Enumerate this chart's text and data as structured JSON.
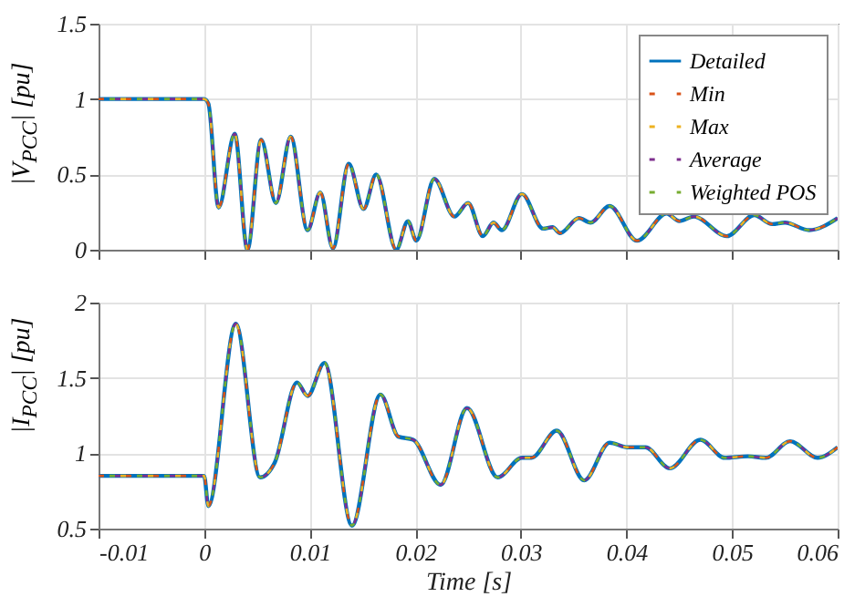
{
  "chart_data": [
    {
      "type": "line",
      "ylabel": "|V$_{PCC}$| [pu]",
      "xlim": [
        -0.01,
        0.06
      ],
      "xticks": [
        -0.01,
        0,
        0.01,
        0.02,
        0.03,
        0.04,
        0.05,
        0.06
      ],
      "ylim": [
        0,
        1.5
      ],
      "yticks": [
        0,
        0.5,
        1,
        1.5
      ],
      "grid": true,
      "legend": "top right",
      "tick_labels": "y",
      "x": [
        -0.01,
        0,
        0.0004,
        0.00137,
        0.0029,
        0.0041,
        0.0054,
        0.0068,
        0.0082,
        0.0098,
        0.011,
        0.0122,
        0.0137,
        0.0151,
        0.0163,
        0.0182,
        0.0193,
        0.0201,
        0.0218,
        0.0237,
        0.025,
        0.0264,
        0.0274,
        0.0282,
        0.0301,
        0.0321,
        0.033,
        0.0337,
        0.0355,
        0.0366,
        0.0384,
        0.041,
        0.0438,
        0.045,
        0.0464,
        0.0495,
        0.0521,
        0.0538,
        0.055,
        0.0573,
        0.06
      ],
      "series": [
        {
          "name": "Detailed",
          "color": "#0072bd",
          "line_style": "solid",
          "values": [
            1,
            1,
            0.97,
            0.28,
            0.77,
            0,
            0.73,
            0.31,
            0.75,
            0.13,
            0.38,
            0.01,
            0.57,
            0.27,
            0.5,
            0,
            0.19,
            0.06,
            0.47,
            0.22,
            0.31,
            0.09,
            0.18,
            0.13,
            0.37,
            0.14,
            0.15,
            0.11,
            0.21,
            0.18,
            0.29,
            0.06,
            0.24,
            0.19,
            0.22,
            0.09,
            0.23,
            0.17,
            0.18,
            0.13,
            0.21
          ]
        },
        {
          "name": "Min",
          "color": "#d95319",
          "line_style": "dashed",
          "values": [
            1,
            1,
            0.97,
            0.28,
            0.77,
            0,
            0.73,
            0.31,
            0.75,
            0.13,
            0.38,
            0.01,
            0.57,
            0.27,
            0.5,
            0,
            0.19,
            0.06,
            0.47,
            0.22,
            0.31,
            0.09,
            0.18,
            0.13,
            0.37,
            0.14,
            0.15,
            0.11,
            0.21,
            0.18,
            0.29,
            0.06,
            0.24,
            0.19,
            0.22,
            0.09,
            0.23,
            0.17,
            0.18,
            0.13,
            0.21
          ]
        },
        {
          "name": "Max",
          "color": "#edb120",
          "line_style": "dashed",
          "values": [
            1,
            1,
            0.97,
            0.28,
            0.77,
            0,
            0.73,
            0.31,
            0.75,
            0.13,
            0.38,
            0.01,
            0.57,
            0.27,
            0.5,
            0,
            0.19,
            0.06,
            0.47,
            0.22,
            0.31,
            0.09,
            0.18,
            0.13,
            0.37,
            0.14,
            0.15,
            0.11,
            0.21,
            0.18,
            0.29,
            0.06,
            0.24,
            0.19,
            0.22,
            0.09,
            0.23,
            0.17,
            0.18,
            0.13,
            0.21
          ]
        },
        {
          "name": "Average",
          "color": "#7e2f8e",
          "line_style": "dashed",
          "values": [
            1,
            1,
            0.97,
            0.28,
            0.77,
            0,
            0.73,
            0.31,
            0.75,
            0.13,
            0.38,
            0.01,
            0.57,
            0.27,
            0.5,
            0,
            0.19,
            0.06,
            0.47,
            0.22,
            0.31,
            0.09,
            0.18,
            0.13,
            0.37,
            0.14,
            0.15,
            0.11,
            0.21,
            0.18,
            0.29,
            0.06,
            0.24,
            0.19,
            0.22,
            0.09,
            0.23,
            0.17,
            0.18,
            0.13,
            0.21
          ]
        },
        {
          "name": "Weighted POS",
          "color": "#77ac30",
          "line_style": "dashed",
          "values": [
            1,
            1,
            0.97,
            0.28,
            0.77,
            0,
            0.73,
            0.31,
            0.75,
            0.13,
            0.38,
            0.01,
            0.57,
            0.27,
            0.5,
            0,
            0.19,
            0.06,
            0.47,
            0.22,
            0.31,
            0.09,
            0.18,
            0.13,
            0.37,
            0.14,
            0.15,
            0.11,
            0.21,
            0.18,
            0.29,
            0.06,
            0.24,
            0.19,
            0.22,
            0.09,
            0.23,
            0.17,
            0.18,
            0.13,
            0.21
          ]
        }
      ]
    },
    {
      "type": "line",
      "xlabel": "Time [s]",
      "ylabel": "|I$_{PCC}$| [pu]",
      "xlim": [
        -0.01,
        0.06
      ],
      "xticks": [
        -0.01,
        0,
        0.01,
        0.02,
        0.03,
        0.04,
        0.05,
        0.06
      ],
      "ylim": [
        0.5,
        2
      ],
      "yticks": [
        0.5,
        1,
        1.5,
        2
      ],
      "grid": true,
      "x": [
        -0.01,
        0,
        0.0004,
        0.003,
        0.0053,
        0.0067,
        0.0088,
        0.0098,
        0.0114,
        0.014,
        0.0167,
        0.0184,
        0.0198,
        0.0224,
        0.0249,
        0.0278,
        0.0301,
        0.031,
        0.0334,
        0.036,
        0.0384,
        0.0401,
        0.0418,
        0.0441,
        0.047,
        0.0493,
        0.0515,
        0.0532,
        0.0555,
        0.0581,
        0.06
      ],
      "series": [
        {
          "color": "#0072bd",
          "line_style": "solid",
          "values": [
            0.85,
            0.85,
            0.65,
            1.86,
            0.84,
            0.94,
            1.47,
            1.38,
            1.6,
            0.52,
            1.39,
            1.11,
            1.09,
            0.79,
            1.3,
            0.84,
            0.97,
            0.97,
            1.15,
            0.82,
            1.07,
            1.04,
            1.04,
            0.9,
            1.09,
            0.97,
            0.98,
            0.97,
            1.08,
            0.97,
            1.04
          ]
        },
        {
          "color": "#d95319",
          "line_style": "dashed",
          "values": [
            0.85,
            0.85,
            0.65,
            1.86,
            0.84,
            0.94,
            1.47,
            1.38,
            1.6,
            0.52,
            1.39,
            1.11,
            1.09,
            0.79,
            1.3,
            0.84,
            0.97,
            0.97,
            1.15,
            0.82,
            1.07,
            1.04,
            1.04,
            0.9,
            1.09,
            0.97,
            0.98,
            0.97,
            1.08,
            0.97,
            1.04
          ]
        },
        {
          "color": "#edb120",
          "line_style": "dashed",
          "values": [
            0.85,
            0.85,
            0.65,
            1.86,
            0.84,
            0.94,
            1.47,
            1.38,
            1.6,
            0.52,
            1.39,
            1.11,
            1.09,
            0.79,
            1.3,
            0.84,
            0.97,
            0.97,
            1.15,
            0.82,
            1.07,
            1.04,
            1.04,
            0.9,
            1.09,
            0.97,
            0.98,
            0.97,
            1.08,
            0.97,
            1.04
          ]
        },
        {
          "color": "#7e2f8e",
          "line_style": "dashed",
          "values": [
            0.85,
            0.85,
            0.65,
            1.86,
            0.84,
            0.94,
            1.47,
            1.38,
            1.6,
            0.52,
            1.39,
            1.11,
            1.09,
            0.79,
            1.3,
            0.84,
            0.97,
            0.97,
            1.15,
            0.82,
            1.07,
            1.04,
            1.04,
            0.9,
            1.09,
            0.97,
            0.98,
            0.97,
            1.08,
            0.97,
            1.04
          ]
        },
        {
          "color": "#77ac30",
          "line_style": "dashed",
          "values": [
            0.85,
            0.85,
            0.65,
            1.86,
            0.84,
            0.94,
            1.47,
            1.38,
            1.6,
            0.52,
            1.39,
            1.11,
            1.09,
            0.79,
            1.3,
            0.84,
            0.97,
            0.97,
            1.15,
            0.82,
            1.07,
            1.04,
            1.04,
            0.9,
            1.09,
            0.97,
            0.98,
            0.97,
            1.08,
            0.97,
            1.04
          ]
        }
      ]
    }
  ]
}
